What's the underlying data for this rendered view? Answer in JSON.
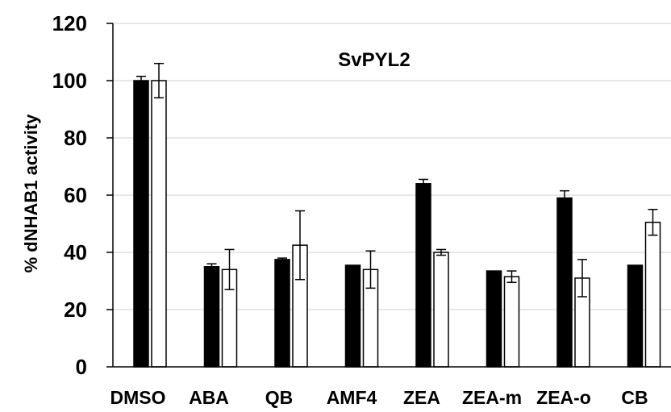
{
  "chart_data": {
    "type": "bar",
    "title": "SvPYL2",
    "xlabel": "",
    "ylabel": "% dNHAB1 activity",
    "ylim": [
      0,
      120
    ],
    "yticks": [
      0,
      20,
      40,
      60,
      80,
      100,
      120
    ],
    "grid": true,
    "categories": [
      "DMSO",
      "ABA",
      "QB",
      "AMF4",
      "ZEA",
      "ZEA-m",
      "ZEA-o",
      "CB"
    ],
    "series": [
      {
        "color": "#000000",
        "values": [
          100,
          35,
          37.5,
          35.5,
          64,
          33.5,
          59,
          35.5
        ],
        "errors": [
          1.5,
          1,
          0.5,
          0,
          1.5,
          0,
          2.5,
          0
        ]
      },
      {
        "color": "#ffffff",
        "values": [
          100,
          34,
          42.5,
          34,
          40,
          31.5,
          31,
          50.5
        ],
        "errors": [
          6,
          7,
          12,
          6.5,
          1,
          2,
          6.5,
          4.5
        ]
      }
    ]
  }
}
